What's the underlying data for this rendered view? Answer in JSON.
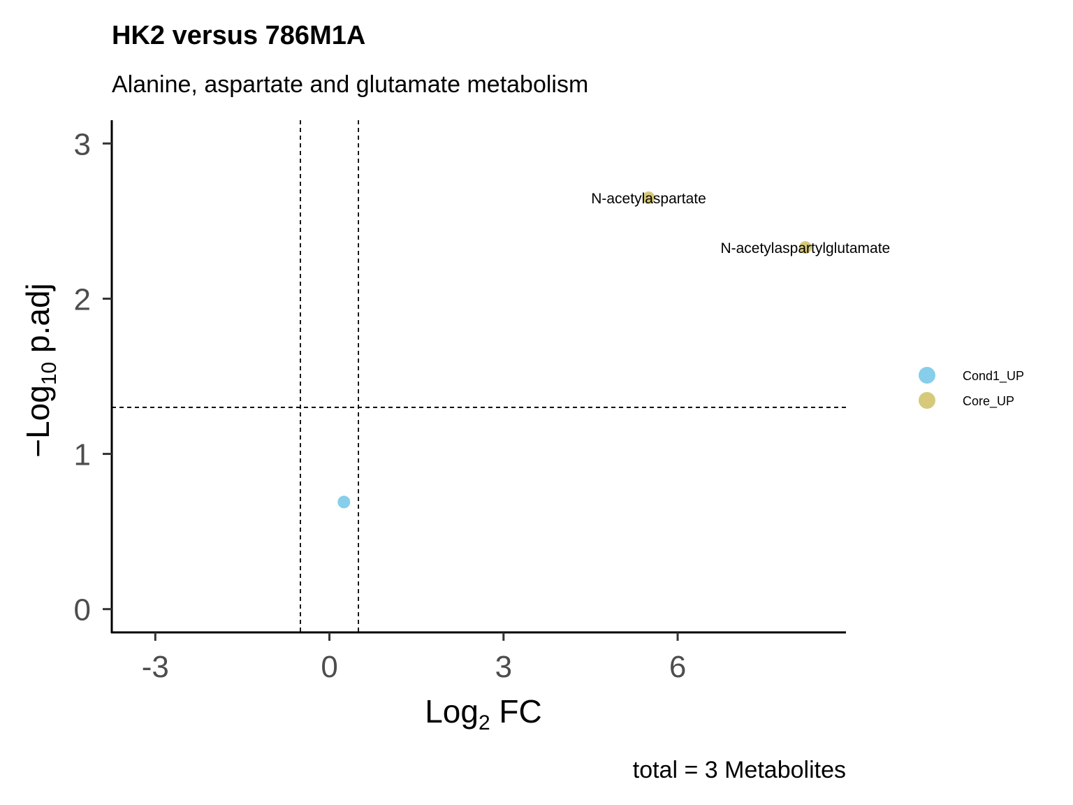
{
  "chart_data": {
    "type": "scatter",
    "title": "HK2 versus 786M1A",
    "subtitle": "Alanine, aspartate and glutamate metabolism",
    "xlabel": {
      "base": "Log",
      "sub": "2",
      "rest": " FC"
    },
    "ylabel": {
      "base": "−Log",
      "sub": "10",
      "rest": " p.adj"
    },
    "xlim": [
      -3.75,
      8.9
    ],
    "ylim": [
      -0.15,
      3.15
    ],
    "x_ticks": [
      -3,
      0,
      3,
      6
    ],
    "x_tick_labels": [
      "-3",
      "0",
      "3",
      "6"
    ],
    "y_ticks": [
      0,
      1,
      2,
      3
    ],
    "y_tick_labels": [
      "0",
      "1",
      "2",
      "3"
    ],
    "threshold_lines": {
      "vertical": [
        -0.5,
        0.5
      ],
      "horizontal": [
        1.3
      ]
    },
    "grid": false,
    "legend_placement": "right",
    "legend": [
      {
        "name": "Cond1_UP",
        "color": "#87ceeb"
      },
      {
        "name": "Core_UP",
        "color": "#d6c97a"
      }
    ],
    "points": [
      {
        "x": 0.25,
        "y": 0.69,
        "group": "Cond1_UP",
        "label": ""
      },
      {
        "x": 5.5,
        "y": 2.65,
        "group": "Core_UP",
        "label": "N-acetylaspartate"
      },
      {
        "x": 8.2,
        "y": 2.33,
        "group": "Core_UP",
        "label": "N-acetylaspartylglutamate"
      }
    ],
    "caption": "total = 3 Metabolites"
  }
}
